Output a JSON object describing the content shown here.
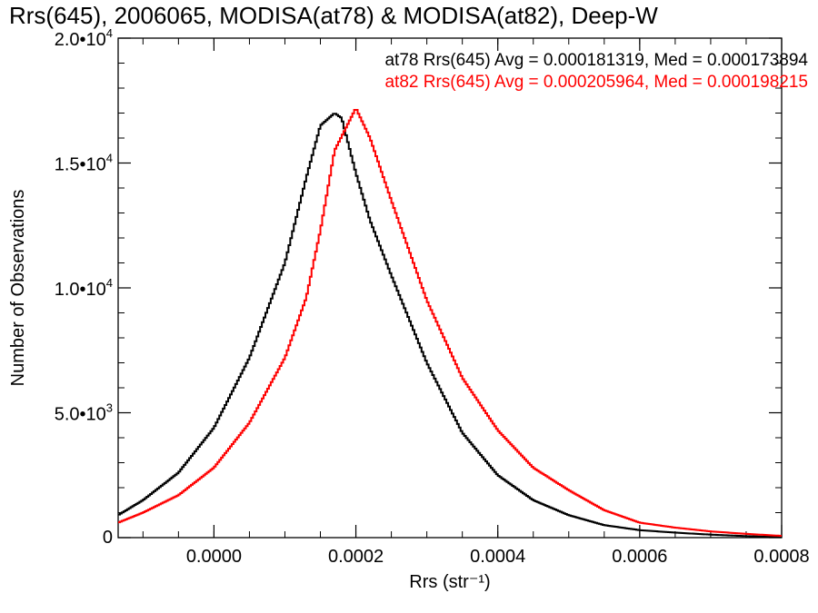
{
  "chart_data": {
    "type": "line",
    "title": "Rrs(645), 2006065, MODISA(at78) & MODISA(at82), Deep-W",
    "xlabel": "Rrs (str⁻¹)",
    "ylabel": "Number of Observations",
    "xlim": [
      -0.000135,
      0.0008
    ],
    "ylim": [
      0,
      20000
    ],
    "grid": false,
    "legend_position": "top-right",
    "x_ticks": [
      {
        "value": 0.0,
        "label": "0.0000"
      },
      {
        "value": 0.0002,
        "label": "0.0002"
      },
      {
        "value": 0.0004,
        "label": "0.0004"
      },
      {
        "value": 0.0006,
        "label": "0.0006"
      },
      {
        "value": 0.0008,
        "label": "0.0008"
      }
    ],
    "y_ticks": [
      {
        "value": 0,
        "label": "0"
      },
      {
        "value": 5000,
        "label": "5.0•10",
        "exp": "3"
      },
      {
        "value": 10000,
        "label": "1.0•10",
        "exp": "4"
      },
      {
        "value": 15000,
        "label": "1.5•10",
        "exp": "4"
      },
      {
        "value": 20000,
        "label": "2.0•10",
        "exp": "4"
      }
    ],
    "annotations": [
      {
        "text": "at78 Rrs(645) Avg = 0.000181319, Med = 0.000173894",
        "color": "#000000"
      },
      {
        "text": "at82 Rrs(645) Avg = 0.000205964, Med = 0.000198215",
        "color": "#ff0000"
      }
    ],
    "series": [
      {
        "color": "#000000",
        "x": [
          -0.000135,
          -0.0001,
          -5e-05,
          0.0,
          5e-05,
          0.0001,
          0.00013,
          0.00015,
          0.00017,
          0.00018,
          0.0002,
          0.00022,
          0.00025,
          0.0003,
          0.00035,
          0.0004,
          0.00045,
          0.0005,
          0.00055,
          0.0006,
          0.00065,
          0.0007,
          0.00075,
          0.0008
        ],
        "y": [
          900,
          1500,
          2600,
          4400,
          7200,
          11000,
          14400,
          16500,
          17000,
          16800,
          14600,
          12700,
          10500,
          7000,
          4200,
          2500,
          1500,
          900,
          500,
          300,
          200,
          120,
          60,
          20
        ]
      },
      {
        "color": "#ff0000",
        "x": [
          -0.000135,
          -0.0001,
          -5e-05,
          0.0,
          5e-05,
          0.0001,
          0.00013,
          0.00015,
          0.00017,
          0.0002,
          0.00022,
          0.00025,
          0.0003,
          0.00035,
          0.0004,
          0.00045,
          0.0005,
          0.00055,
          0.0006,
          0.00065,
          0.0007,
          0.00075,
          0.0008
        ],
        "y": [
          600,
          1000,
          1700,
          2800,
          4600,
          7200,
          9600,
          12300,
          15500,
          17200,
          16000,
          13500,
          9500,
          6400,
          4300,
          2800,
          1900,
          1100,
          600,
          400,
          250,
          150,
          70
        ]
      }
    ]
  }
}
